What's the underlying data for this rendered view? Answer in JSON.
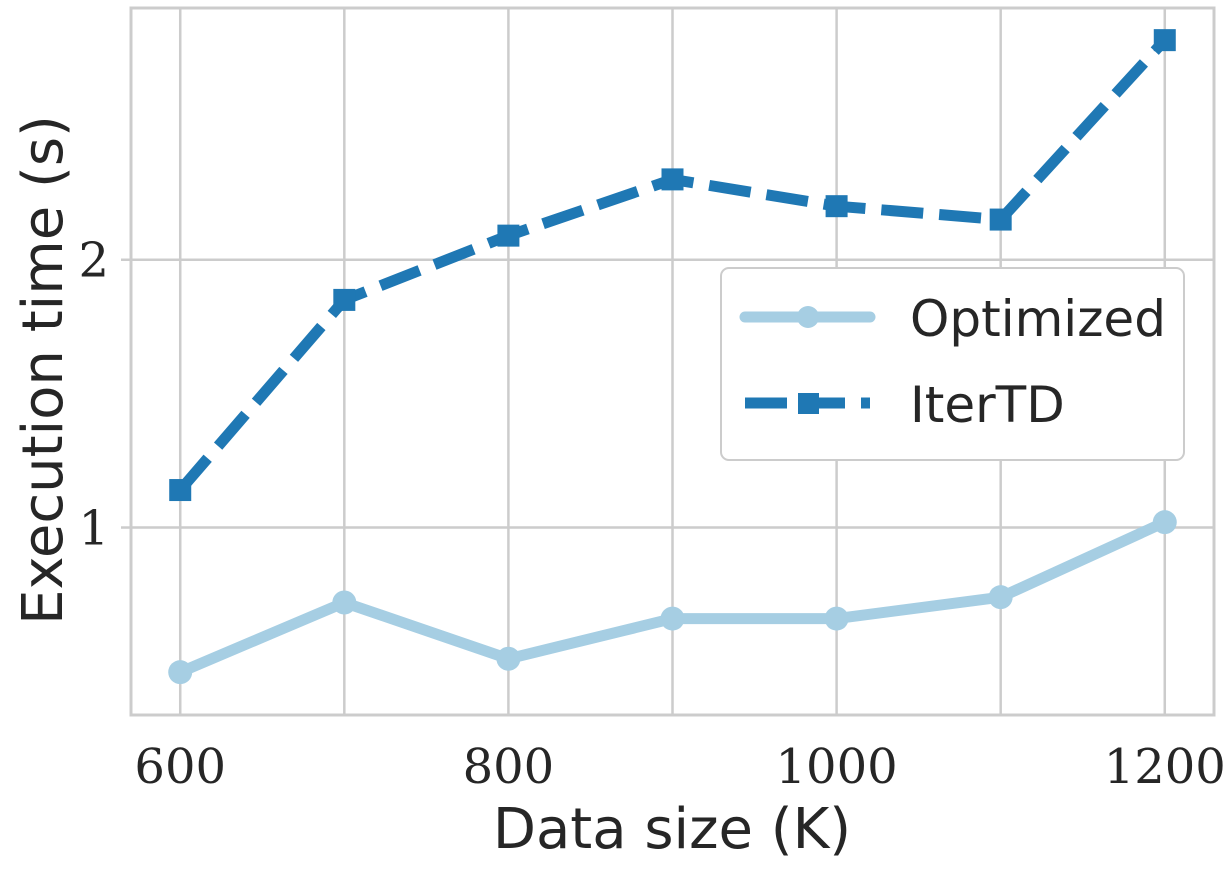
{
  "chart_data": {
    "type": "line",
    "title": "",
    "xlabel": "Data size (K)",
    "ylabel": "Execution time (s)",
    "x": [
      600,
      700,
      800,
      900,
      1000,
      1100,
      1200
    ],
    "xlim": [
      570,
      1230
    ],
    "ylim": [
      0.3,
      2.94
    ],
    "xticks": [
      "600",
      "800",
      "1000",
      "1200"
    ],
    "yticks": [
      "1",
      "2"
    ],
    "grid": true,
    "legend_position": "center-right",
    "series": [
      {
        "name": "Optimized",
        "color": "#a6cee3",
        "line_style": "solid",
        "marker": "circle",
        "values": [
          0.46,
          0.72,
          0.51,
          0.66,
          0.66,
          0.74,
          1.02
        ]
      },
      {
        "name": "IterTD",
        "color": "#1f78b4",
        "line_style": "dashed",
        "marker": "square",
        "values": [
          1.14,
          1.85,
          2.09,
          2.3,
          2.2,
          2.15,
          2.82
        ]
      }
    ]
  }
}
